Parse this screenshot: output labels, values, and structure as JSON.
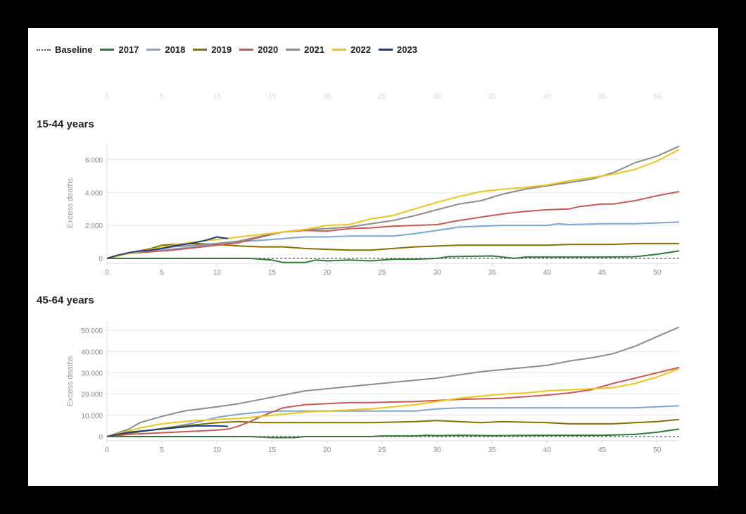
{
  "legend": [
    {
      "label": "Baseline",
      "color": "#555555",
      "dashed": true
    },
    {
      "label": "2017",
      "color": "#2e7d32"
    },
    {
      "label": "2018",
      "color": "#7ba7d6"
    },
    {
      "label": "2019",
      "color": "#8a7000"
    },
    {
      "label": "2020",
      "color": "#cc5a52"
    },
    {
      "label": "2021",
      "color": "#8c8c8c"
    },
    {
      "label": "2022",
      "color": "#f0c419"
    },
    {
      "label": "2023",
      "color": "#1a3e8a"
    }
  ],
  "chart_data": [
    {
      "type": "line",
      "title": "15-44 years",
      "ylabel": "Excess deaths",
      "xlabel": "",
      "xlim": [
        0,
        52
      ],
      "ylim": [
        -300,
        7000
      ],
      "xticks": [
        "0",
        "5",
        "10",
        "15",
        "20",
        "25",
        "30",
        "35",
        "40",
        "45",
        "50"
      ],
      "yticks": [
        "0",
        "2.000",
        "4.000",
        "6.000"
      ],
      "ytick_values": [
        0,
        2000,
        4000,
        6000
      ],
      "grid": true,
      "series": [
        {
          "name": "2017",
          "color": "#2e7d32",
          "x": [
            0,
            5,
            10,
            13,
            14,
            15,
            16,
            17,
            18,
            19,
            20,
            22,
            24,
            26,
            28,
            30,
            31,
            32,
            35,
            36,
            37,
            38,
            40,
            45,
            48,
            50,
            52
          ],
          "y": [
            0,
            0,
            0,
            0,
            -50,
            -100,
            -250,
            -250,
            -250,
            -100,
            -150,
            -100,
            -150,
            -50,
            -50,
            0,
            100,
            120,
            150,
            80,
            0,
            80,
            80,
            80,
            100,
            250,
            450
          ]
        },
        {
          "name": "2018",
          "color": "#7ba7d6",
          "x": [
            0,
            2,
            5,
            8,
            10,
            12,
            14,
            16,
            18,
            20,
            22,
            24,
            26,
            28,
            30,
            32,
            34,
            36,
            38,
            40,
            41,
            42,
            45,
            48,
            50,
            52
          ],
          "y": [
            0,
            300,
            500,
            700,
            900,
            1000,
            1100,
            1200,
            1300,
            1300,
            1350,
            1350,
            1350,
            1500,
            1700,
            1900,
            1950,
            2000,
            2000,
            2000,
            2100,
            2050,
            2100,
            2100,
            2150,
            2200
          ]
        },
        {
          "name": "2019",
          "color": "#8a7000",
          "x": [
            0,
            2,
            4,
            5,
            6,
            8,
            10,
            12,
            14,
            16,
            18,
            20,
            22,
            24,
            26,
            28,
            30,
            32,
            34,
            36,
            38,
            40,
            42,
            44,
            46,
            48,
            50,
            52
          ],
          "y": [
            0,
            300,
            600,
            800,
            850,
            900,
            850,
            750,
            700,
            700,
            600,
            550,
            500,
            500,
            600,
            700,
            750,
            800,
            800,
            800,
            800,
            800,
            850,
            850,
            850,
            900,
            900,
            900
          ]
        },
        {
          "name": "2020",
          "color": "#cc5a52",
          "x": [
            0,
            2,
            4,
            6,
            8,
            10,
            12,
            14,
            16,
            18,
            20,
            22,
            24,
            26,
            28,
            30,
            32,
            34,
            36,
            38,
            40,
            42,
            43,
            45,
            46,
            48,
            50,
            52
          ],
          "y": [
            0,
            300,
            400,
            500,
            650,
            800,
            950,
            1300,
            1600,
            1700,
            1650,
            1800,
            1850,
            1950,
            2000,
            2050,
            2300,
            2500,
            2700,
            2850,
            2950,
            3000,
            3150,
            3300,
            3300,
            3500,
            3800,
            4050
          ]
        },
        {
          "name": "2021",
          "color": "#8c8c8c",
          "x": [
            0,
            2,
            4,
            6,
            8,
            10,
            12,
            14,
            16,
            18,
            20,
            22,
            24,
            26,
            28,
            30,
            32,
            34,
            36,
            38,
            40,
            42,
            44,
            46,
            48,
            50,
            52
          ],
          "y": [
            0,
            300,
            500,
            700,
            800,
            900,
            1050,
            1350,
            1600,
            1750,
            1800,
            1900,
            2100,
            2300,
            2600,
            2950,
            3300,
            3500,
            3900,
            4200,
            4400,
            4600,
            4800,
            5200,
            5800,
            6200,
            6800
          ]
        },
        {
          "name": "2022",
          "color": "#f0c419",
          "x": [
            0,
            2,
            4,
            6,
            8,
            10,
            12,
            14,
            16,
            18,
            20,
            22,
            24,
            26,
            28,
            30,
            32,
            34,
            36,
            38,
            40,
            42,
            44,
            46,
            48,
            50,
            52
          ],
          "y": [
            0,
            300,
            550,
            800,
            1000,
            1150,
            1300,
            1450,
            1600,
            1750,
            2000,
            2050,
            2400,
            2600,
            3000,
            3400,
            3750,
            4050,
            4200,
            4300,
            4450,
            4700,
            4900,
            5100,
            5400,
            5900,
            6600
          ]
        },
        {
          "name": "2023",
          "color": "#1a3e8a",
          "x": [
            0,
            1,
            2,
            3,
            4,
            5,
            6,
            7,
            8,
            9,
            10,
            11
          ],
          "y": [
            0,
            200,
            350,
            450,
            500,
            600,
            750,
            850,
            950,
            1100,
            1300,
            1200
          ]
        },
        {
          "name": "Baseline",
          "color": "#555555",
          "dashed": true,
          "x": [
            0,
            52
          ],
          "y": [
            0,
            0
          ]
        }
      ]
    },
    {
      "type": "line",
      "title": "45-64 years",
      "ylabel": "Excess deaths",
      "xlabel": "",
      "xlim": [
        0,
        52
      ],
      "ylim": [
        -2000,
        54000
      ],
      "xticks": [
        "0",
        "5",
        "10",
        "15",
        "20",
        "25",
        "30",
        "35",
        "40",
        "45",
        "50"
      ],
      "yticks": [
        "0",
        "10.000",
        "20.000",
        "30.000",
        "40.000",
        "50.000"
      ],
      "ytick_values": [
        0,
        10000,
        20000,
        30000,
        40000,
        50000
      ],
      "grid": true,
      "series": [
        {
          "name": "2017",
          "color": "#2e7d32",
          "x": [
            0,
            5,
            10,
            13,
            15,
            17,
            18,
            20,
            24,
            25,
            28,
            29,
            30,
            32,
            35,
            40,
            45,
            48,
            50,
            52
          ],
          "y": [
            0,
            0,
            0,
            0,
            -500,
            -500,
            0,
            0,
            0,
            300,
            300,
            600,
            400,
            600,
            400,
            600,
            600,
            1000,
            2000,
            3500
          ]
        },
        {
          "name": "2018",
          "color": "#7ba7d6",
          "x": [
            0,
            2,
            4,
            6,
            8,
            10,
            12,
            14,
            16,
            18,
            20,
            24,
            28,
            30,
            32,
            36,
            40,
            44,
            48,
            50,
            52
          ],
          "y": [
            0,
            1500,
            3000,
            4500,
            6500,
            9000,
            10500,
            11500,
            12000,
            12000,
            12000,
            12000,
            12000,
            13000,
            13500,
            13500,
            13500,
            13500,
            13500,
            14000,
            14500
          ]
        },
        {
          "name": "2019",
          "color": "#8a7000",
          "x": [
            0,
            2,
            4,
            6,
            8,
            10,
            12,
            14,
            16,
            18,
            20,
            24,
            28,
            30,
            32,
            34,
            36,
            40,
            42,
            44,
            46,
            48,
            50,
            52
          ],
          "y": [
            0,
            1500,
            3000,
            4500,
            5500,
            6500,
            7000,
            6500,
            6500,
            6500,
            6500,
            6500,
            7000,
            7500,
            7000,
            6500,
            7000,
            6500,
            6000,
            6000,
            6000,
            6500,
            7000,
            8000
          ]
        },
        {
          "name": "2020",
          "color": "#cc5a52",
          "x": [
            0,
            2,
            4,
            6,
            8,
            10,
            11,
            12,
            13,
            14,
            15,
            16,
            18,
            20,
            22,
            24,
            28,
            32,
            36,
            40,
            42,
            44,
            45,
            46,
            48,
            50,
            52
          ],
          "y": [
            0,
            1000,
            1500,
            2000,
            2500,
            3000,
            3500,
            5000,
            7000,
            9500,
            11500,
            13500,
            15000,
            15500,
            16000,
            16000,
            16500,
            17500,
            18000,
            19500,
            20500,
            22000,
            23500,
            25000,
            27500,
            30000,
            32500
          ]
        },
        {
          "name": "2021",
          "color": "#8c8c8c",
          "x": [
            0,
            2,
            3,
            5,
            7,
            10,
            12,
            14,
            16,
            18,
            20,
            22,
            24,
            26,
            28,
            30,
            32,
            34,
            36,
            38,
            40,
            42,
            44,
            46,
            48,
            50,
            52
          ],
          "y": [
            0,
            3500,
            6500,
            9500,
            12000,
            14000,
            15500,
            17500,
            19500,
            21500,
            22500,
            23500,
            24500,
            25500,
            26500,
            27500,
            29000,
            30500,
            31500,
            32500,
            33500,
            35500,
            37000,
            39000,
            42500,
            47000,
            51500
          ]
        },
        {
          "name": "2022",
          "color": "#f0c419",
          "x": [
            0,
            3,
            5,
            8,
            10,
            12,
            14,
            16,
            18,
            20,
            22,
            24,
            26,
            28,
            30,
            32,
            34,
            36,
            38,
            40,
            42,
            44,
            46,
            48,
            50,
            52
          ],
          "y": [
            0,
            4000,
            6000,
            7500,
            8000,
            8500,
            9500,
            10500,
            11500,
            12000,
            12500,
            13000,
            14000,
            15000,
            16500,
            18000,
            19000,
            20000,
            20500,
            21500,
            22000,
            22500,
            23000,
            25000,
            28000,
            32000
          ]
        },
        {
          "name": "2023",
          "color": "#1a3e8a",
          "x": [
            0,
            1,
            2,
            3,
            4,
            5,
            6,
            7,
            8,
            9,
            10,
            11
          ],
          "y": [
            0,
            1000,
            2000,
            2500,
            3000,
            3500,
            4000,
            4500,
            5000,
            5000,
            5000,
            4800
          ]
        },
        {
          "name": "Baseline",
          "color": "#555555",
          "dashed": true,
          "x": [
            0,
            52
          ],
          "y": [
            0,
            0
          ]
        }
      ]
    }
  ]
}
